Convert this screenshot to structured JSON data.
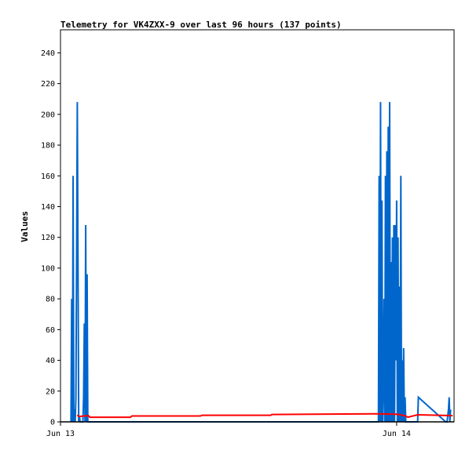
{
  "chart_data": {
    "type": "line",
    "title": "Telemetry for VK4ZXX-9 over last 96 hours (137 points)",
    "xlabel": "",
    "ylabel": "Values",
    "ylim": [
      0,
      255
    ],
    "xlim": [
      0,
      28.1
    ],
    "x_unit": "hours since Jun 13 00:00",
    "yticks": [
      0,
      20,
      40,
      60,
      80,
      100,
      120,
      140,
      160,
      180,
      200,
      220,
      240
    ],
    "xticks": [
      {
        "value": 0,
        "label": "Jun 13"
      },
      {
        "value": 24,
        "label": "Jun 14"
      }
    ],
    "grid": false,
    "legend": "none",
    "series": [
      {
        "color": "#0066cc",
        "points": [
          [
            0.75,
            0
          ],
          [
            0.8,
            80
          ],
          [
            0.85,
            0
          ],
          [
            0.9,
            160
          ],
          [
            0.95,
            0
          ],
          [
            1.0,
            8
          ],
          [
            1.05,
            0
          ],
          [
            1.1,
            16
          ],
          [
            1.15,
            104
          ],
          [
            1.2,
            208
          ],
          [
            1.25,
            104
          ],
          [
            1.3,
            0
          ],
          [
            1.35,
            4
          ],
          [
            1.4,
            0
          ],
          [
            1.45,
            0
          ],
          [
            1.5,
            0
          ],
          [
            1.6,
            0
          ],
          [
            1.65,
            16
          ],
          [
            1.7,
            64
          ],
          [
            1.75,
            0
          ],
          [
            1.8,
            128
          ],
          [
            1.85,
            0
          ],
          [
            1.9,
            96
          ],
          [
            1.95,
            0
          ],
          [
            22.7,
            0
          ],
          [
            22.75,
            160
          ],
          [
            22.8,
            0
          ],
          [
            22.85,
            208
          ],
          [
            22.9,
            0
          ],
          [
            22.95,
            144
          ],
          [
            23.0,
            0
          ],
          [
            23.05,
            24
          ],
          [
            23.1,
            80
          ],
          [
            23.15,
            0
          ],
          [
            23.2,
            160
          ],
          [
            23.25,
            0
          ],
          [
            23.3,
            176
          ],
          [
            23.35,
            0
          ],
          [
            23.4,
            192
          ],
          [
            23.45,
            0
          ],
          [
            23.5,
            208
          ],
          [
            23.55,
            0
          ],
          [
            23.6,
            104
          ],
          [
            23.65,
            0
          ],
          [
            23.7,
            120
          ],
          [
            23.75,
            0
          ],
          [
            23.8,
            128
          ],
          [
            23.85,
            0
          ],
          [
            23.9,
            128
          ],
          [
            23.95,
            40
          ],
          [
            24.0,
            144
          ],
          [
            24.05,
            0
          ],
          [
            24.1,
            120
          ],
          [
            24.15,
            0
          ],
          [
            24.2,
            88
          ],
          [
            24.25,
            0
          ],
          [
            24.3,
            160
          ],
          [
            24.35,
            0
          ],
          [
            24.4,
            40
          ],
          [
            24.45,
            0
          ],
          [
            24.5,
            48
          ],
          [
            24.55,
            0
          ],
          [
            24.6,
            16
          ],
          [
            24.65,
            0
          ],
          [
            25.5,
            0
          ],
          [
            25.55,
            16
          ],
          [
            27.5,
            0
          ],
          [
            27.6,
            0
          ],
          [
            27.7,
            8
          ],
          [
            27.75,
            16
          ],
          [
            27.8,
            0
          ],
          [
            27.85,
            8
          ]
        ]
      },
      {
        "color": "#ff0000",
        "points": [
          [
            1.2,
            4.5
          ],
          [
            1.3,
            3.5
          ],
          [
            2.0,
            4
          ],
          [
            2.1,
            3
          ],
          [
            5.0,
            3
          ],
          [
            5.1,
            3.8
          ],
          [
            10.0,
            3.8
          ],
          [
            10.1,
            4.3
          ],
          [
            15.0,
            4.3
          ],
          [
            15.1,
            4.8
          ],
          [
            22.5,
            5.2
          ],
          [
            24.0,
            5.0
          ],
          [
            24.6,
            4.0
          ],
          [
            24.8,
            3.0
          ],
          [
            25.5,
            4.6
          ],
          [
            27.3,
            4.2
          ],
          [
            28.0,
            4.0
          ]
        ]
      },
      {
        "color": "#000000",
        "points": [
          [
            0,
            0
          ],
          [
            28.1,
            0
          ]
        ]
      }
    ]
  }
}
